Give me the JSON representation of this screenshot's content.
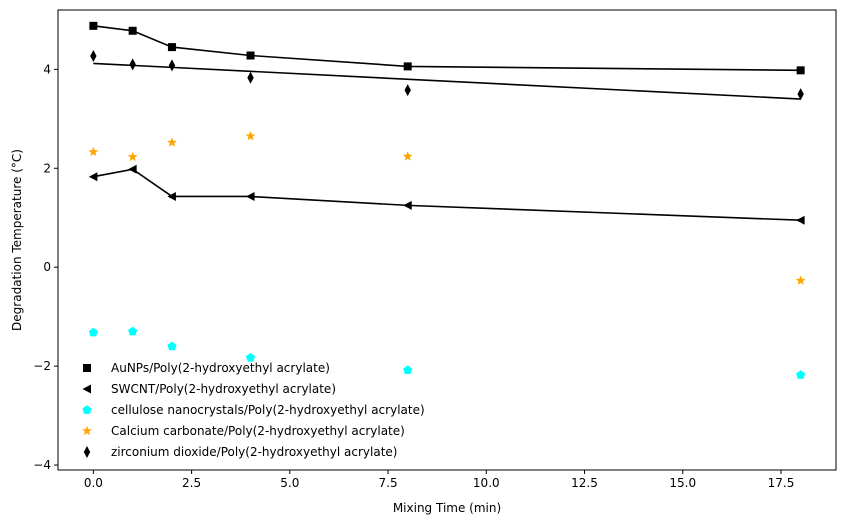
{
  "chart_data": {
    "type": "scatter",
    "title": "",
    "xlabel": "Mixing Time (min)",
    "ylabel": "Degradation Temperature (°C)",
    "xlim": [
      -0.9,
      18.9
    ],
    "ylim": [
      -4.1,
      5.2
    ],
    "xticks": [
      0.0,
      2.5,
      5.0,
      7.5,
      10.0,
      12.5,
      15.0,
      17.5
    ],
    "yticks": [
      -4,
      -2,
      0,
      2,
      4
    ],
    "grid": false,
    "legend": {
      "placement": "lower-left"
    },
    "series": [
      {
        "name": "AuNPs/Poly(2-hydroxyethyl acrylate)",
        "marker": "square",
        "color": "#000000",
        "x": [
          0,
          1,
          2,
          4,
          8,
          18
        ],
        "y": [
          4.88,
          4.78,
          4.45,
          4.28,
          4.06,
          3.98
        ],
        "line": {
          "x": [
            0,
            1,
            2,
            4,
            8,
            18
          ],
          "y": [
            4.88,
            4.78,
            4.45,
            4.28,
            4.06,
            3.98
          ]
        }
      },
      {
        "name": "SWCNT/Poly(2-hydroxyethyl acrylate)",
        "marker": "triangle-left",
        "color": "#000000",
        "x": [
          0,
          1,
          2,
          4,
          8,
          18
        ],
        "y": [
          1.83,
          1.98,
          1.43,
          1.43,
          1.25,
          0.95
        ],
        "line": {
          "x": [
            0,
            1,
            2,
            4,
            8,
            18
          ],
          "y": [
            1.83,
            1.98,
            1.43,
            1.43,
            1.25,
            0.95
          ]
        }
      },
      {
        "name": "cellulose nanocrystals/Poly(2-hydroxyethyl acrylate)",
        "marker": "pentagon",
        "color": "#00ffff",
        "x": [
          0,
          1,
          2,
          4,
          8,
          18
        ],
        "y": [
          -1.32,
          -1.3,
          -1.6,
          -1.83,
          -2.08,
          -2.18
        ]
      },
      {
        "name": "Calcium carbonate/Poly(2-hydroxyethyl acrylate)",
        "marker": "star",
        "color": "#ffa500",
        "x": [
          0,
          1,
          2,
          4,
          8,
          18
        ],
        "y": [
          2.33,
          2.23,
          2.52,
          2.65,
          2.24,
          -0.27
        ]
      },
      {
        "name": "zirconium dioxide/Poly(2-hydroxyethyl acrylate)",
        "marker": "thin-diamond",
        "color": "#000000",
        "x": [
          0,
          1,
          2,
          4,
          8,
          18
        ],
        "y": [
          4.27,
          4.1,
          4.08,
          3.83,
          3.58,
          3.5
        ],
        "line": {
          "x": [
            0,
            18
          ],
          "y": [
            4.12,
            3.4
          ]
        }
      }
    ]
  }
}
